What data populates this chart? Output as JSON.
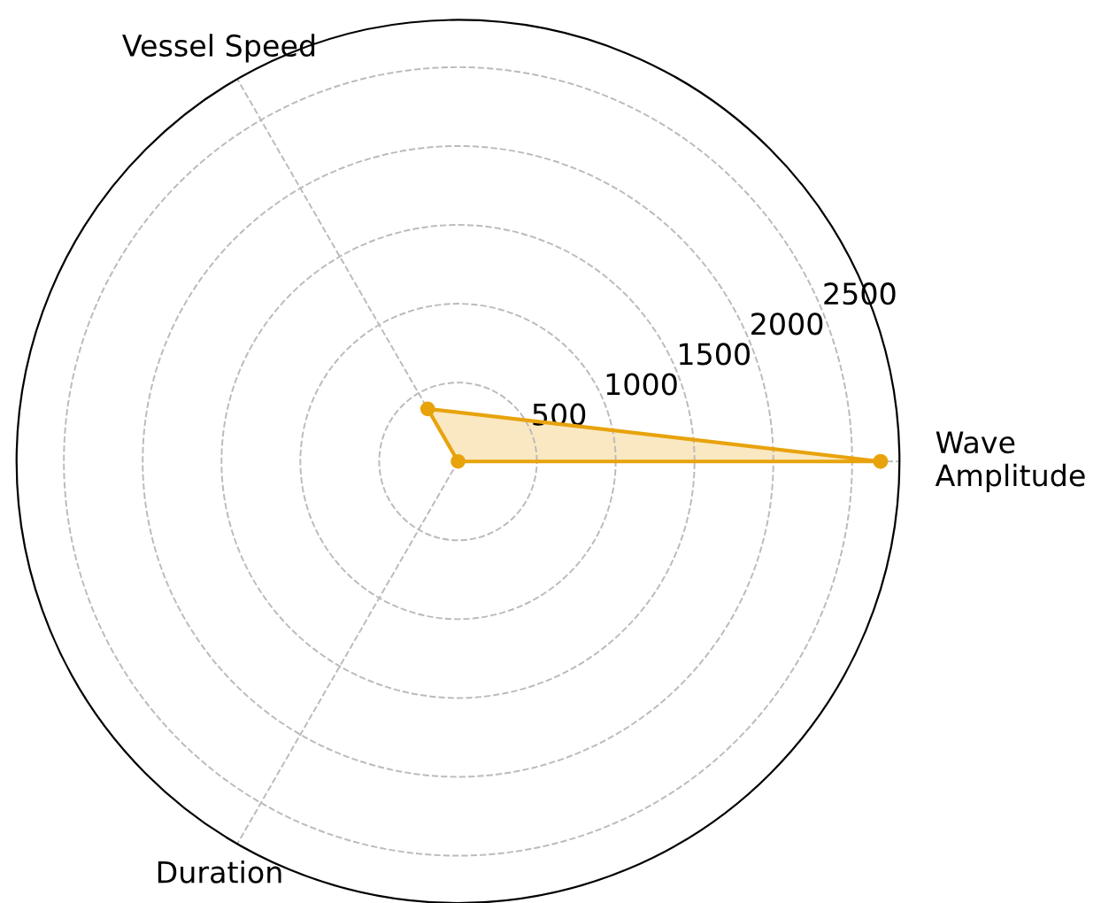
{
  "chart_data": {
    "type": "radar",
    "categories": [
      "Wave\nAmplitude",
      "Duration",
      "Vessel Speed"
    ],
    "series": [
      {
        "color": "#e8a30c",
        "values": [
          2680,
          0,
          385
        ]
      }
    ],
    "ylim": [
      0,
      2800
    ],
    "yticks": [
      500,
      1000,
      1500,
      2000,
      2500
    ],
    "grid": true,
    "marker": "circle",
    "line_style": "solid"
  }
}
